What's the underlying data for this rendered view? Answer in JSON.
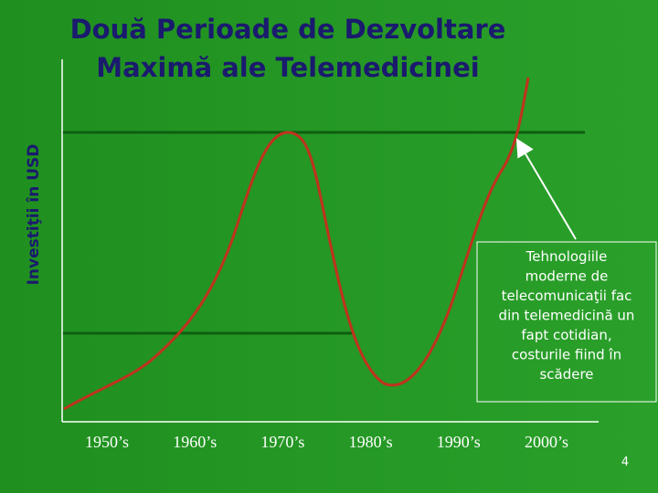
{
  "chart_data": {
    "type": "line",
    "title": [
      "Două Perioade de Dezvoltare",
      "Maximă ale Telemedicinei"
    ],
    "ylabel": "Investiţii în USD",
    "categories": [
      "1950’s",
      "1960’s",
      "1970’s",
      "1980’s",
      "1990’s",
      "2000’s"
    ],
    "color": "#c0321e",
    "annotation": [
      "Tehnologiile",
      "moderne de",
      "telecomunicaţii fac",
      "din telemedicină un",
      "fapt cotidian,",
      "costurile fiind în",
      "scădere"
    ]
  },
  "page_number": "4"
}
